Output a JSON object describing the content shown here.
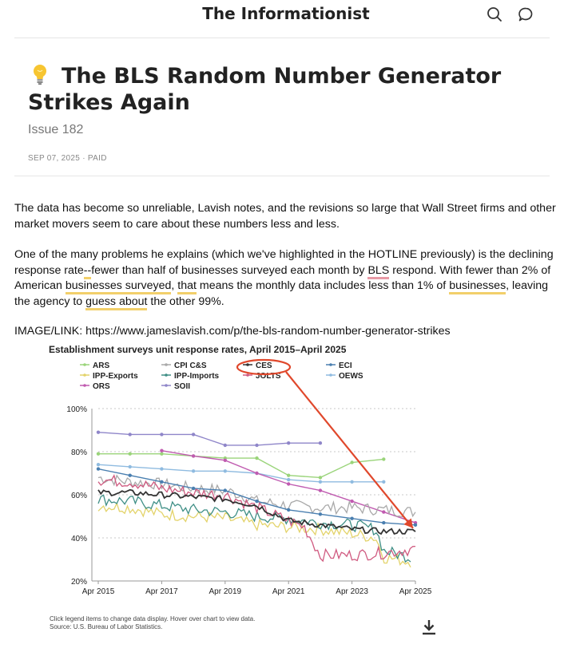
{
  "header": {
    "brand": "The Informationist",
    "search_icon": "search-icon",
    "comment_icon": "comment-icon"
  },
  "article": {
    "icon": "lightbulb-icon",
    "title": "The BLS Random Number Generator Strikes Again",
    "subtitle": "Issue 182",
    "meta": "SEP 07, 2025 · PAID",
    "p1": "The data has become so unreliable, Lavish notes, and the revisions so large that Wall Street firms and other market movers seem to care about these numbers less and less.",
    "p2": [
      {
        "t": "One of the many problems he explains  (which we've highlighted in the HOTLINE previously) is the declining response rate"
      },
      {
        "t": "--",
        "hl": "y"
      },
      {
        "t": "fewer than half of businesses surveyed each month by "
      },
      {
        "t": "BLS",
        "hl": "r"
      },
      {
        "t": " respond. With fewer than 2% of American "
      },
      {
        "t": "businesses surveyed",
        "hl": "y"
      },
      {
        "t": ", "
      },
      {
        "t": "that",
        "hl": "y"
      },
      {
        "t": " means the monthly data includes less than 1% of "
      },
      {
        "t": "businesses",
        "hl": "y"
      },
      {
        "t": ", leaving the agency to "
      },
      {
        "t": "guess about",
        "hl": "y"
      },
      {
        "t": " the other 99%."
      }
    ],
    "link_label": "IMAGE/LINK: https://www.jameslavish.com/p/the-bls-random-number-generator-strikes"
  },
  "chart_data": {
    "type": "line",
    "title": "Establishment surveys unit response rates, April 2015–April 2025",
    "xlabel": "",
    "ylabel": "",
    "x_ticks": [
      "Apr 2015",
      "Apr 2017",
      "Apr 2019",
      "Apr 2021",
      "Apr 2023",
      "Apr 2025"
    ],
    "y_ticks": [
      "20%",
      "40%",
      "60%",
      "80%",
      "100%"
    ],
    "ylim": [
      20,
      100
    ],
    "xlim": [
      2015.25,
      2025.25
    ],
    "grid": true,
    "legend_position": "top",
    "highlighted_series": "CES",
    "annotation": "red circle around CES legend entry with red arrow pointing to end of CES line",
    "series": [
      {
        "name": "ARS",
        "color": "#9ad47a",
        "style": "dots",
        "points": [
          [
            2015.25,
            79
          ],
          [
            2016.25,
            79
          ],
          [
            2017.25,
            79
          ],
          [
            2018.25,
            78
          ],
          [
            2019.25,
            77
          ],
          [
            2020.25,
            77
          ],
          [
            2021.25,
            69
          ],
          [
            2022.25,
            68
          ],
          [
            2023.25,
            75
          ],
          [
            2024.25,
            76.5
          ]
        ]
      },
      {
        "name": "CPI C&S",
        "color": "#a9a9a9",
        "style": "noisy",
        "points": [
          [
            2015.25,
            68
          ],
          [
            2016.25,
            66
          ],
          [
            2017.25,
            65
          ],
          [
            2018.25,
            63
          ],
          [
            2019.25,
            62
          ],
          [
            2019.75,
            60
          ],
          [
            2020.25,
            57
          ],
          [
            2021.25,
            55
          ],
          [
            2022.25,
            54
          ],
          [
            2023.25,
            54
          ],
          [
            2024.25,
            53
          ],
          [
            2025.25,
            52
          ]
        ]
      },
      {
        "name": "CES",
        "color": "#333333",
        "style": "noisy",
        "points": [
          [
            2015.25,
            61
          ],
          [
            2016.25,
            61
          ],
          [
            2017.25,
            60
          ],
          [
            2018.25,
            59
          ],
          [
            2019.25,
            58
          ],
          [
            2020.25,
            55
          ],
          [
            2021.25,
            48
          ],
          [
            2022.25,
            46
          ],
          [
            2023.25,
            44
          ],
          [
            2024.25,
            43
          ],
          [
            2025.25,
            43
          ]
        ]
      },
      {
        "name": "ECI",
        "color": "#4a7fb0",
        "style": "dots",
        "points": [
          [
            2015.25,
            72
          ],
          [
            2016.25,
            69
          ],
          [
            2017.25,
            66
          ],
          [
            2018.25,
            63
          ],
          [
            2019.25,
            62
          ],
          [
            2020.25,
            57
          ],
          [
            2021.25,
            53
          ],
          [
            2022.25,
            51
          ],
          [
            2023.25,
            49
          ],
          [
            2024.25,
            47
          ],
          [
            2025.25,
            46
          ]
        ]
      },
      {
        "name": "IPP-Exports",
        "color": "#e3d36a",
        "style": "noisy",
        "points": [
          [
            2015.25,
            55
          ],
          [
            2016.25,
            54
          ],
          [
            2017.25,
            51
          ],
          [
            2018.25,
            50
          ],
          [
            2019.25,
            49
          ],
          [
            2020.25,
            46
          ],
          [
            2021.25,
            45
          ],
          [
            2022.25,
            44
          ],
          [
            2023.25,
            42
          ],
          [
            2024.0,
            40
          ],
          [
            2024.25,
            31
          ],
          [
            2025.1,
            29
          ]
        ]
      },
      {
        "name": "IPP-Imports",
        "color": "#3f8f86",
        "style": "noisy",
        "points": [
          [
            2015.25,
            58
          ],
          [
            2016.25,
            57
          ],
          [
            2017.25,
            55
          ],
          [
            2018.25,
            53
          ],
          [
            2019.25,
            52
          ],
          [
            2020.25,
            50
          ],
          [
            2021.25,
            49
          ],
          [
            2022.25,
            47
          ],
          [
            2023.25,
            46
          ],
          [
            2024.0,
            44
          ],
          [
            2024.25,
            34
          ],
          [
            2025.1,
            31
          ]
        ]
      },
      {
        "name": "JOLTS",
        "color": "#d05a80",
        "style": "noisy",
        "points": [
          [
            2015.25,
            67
          ],
          [
            2016.25,
            66
          ],
          [
            2017.25,
            63
          ],
          [
            2018.25,
            61
          ],
          [
            2019.25,
            60
          ],
          [
            2020.25,
            54
          ],
          [
            2021.25,
            48
          ],
          [
            2021.75,
            45
          ],
          [
            2022.25,
            32
          ],
          [
            2023.25,
            32
          ],
          [
            2024.25,
            33
          ],
          [
            2025.25,
            35
          ]
        ]
      },
      {
        "name": "OEWS",
        "color": "#8fbbe0",
        "style": "dots",
        "points": [
          [
            2015.25,
            74
          ],
          [
            2016.25,
            73
          ],
          [
            2017.25,
            72
          ],
          [
            2018.25,
            71
          ],
          [
            2019.25,
            71
          ],
          [
            2020.25,
            70
          ],
          [
            2021.25,
            67
          ],
          [
            2022.25,
            66
          ],
          [
            2023.25,
            66
          ],
          [
            2024.25,
            66
          ]
        ]
      },
      {
        "name": "ORS",
        "color": "#c05bb0",
        "style": "dots",
        "points": [
          [
            2017.25,
            80.5
          ],
          [
            2018.25,
            78
          ],
          [
            2019.25,
            76
          ],
          [
            2020.25,
            70
          ],
          [
            2021.25,
            65
          ],
          [
            2022.25,
            62
          ],
          [
            2023.25,
            57
          ],
          [
            2024.25,
            52
          ],
          [
            2025.25,
            47
          ]
        ]
      },
      {
        "name": "SOII",
        "color": "#8f86c9",
        "style": "dots",
        "points": [
          [
            2015.25,
            89
          ],
          [
            2016.25,
            88
          ],
          [
            2017.25,
            88
          ],
          [
            2018.25,
            88
          ],
          [
            2019.25,
            83
          ],
          [
            2020.25,
            83
          ],
          [
            2021.25,
            84
          ],
          [
            2022.25,
            84
          ]
        ]
      }
    ]
  },
  "chart_footer": {
    "note": "Click legend items to change data display. Hover over chart to view data.",
    "source": "Source: U.S. Bureau of Labor Statistics.",
    "download_icon": "download-icon"
  }
}
